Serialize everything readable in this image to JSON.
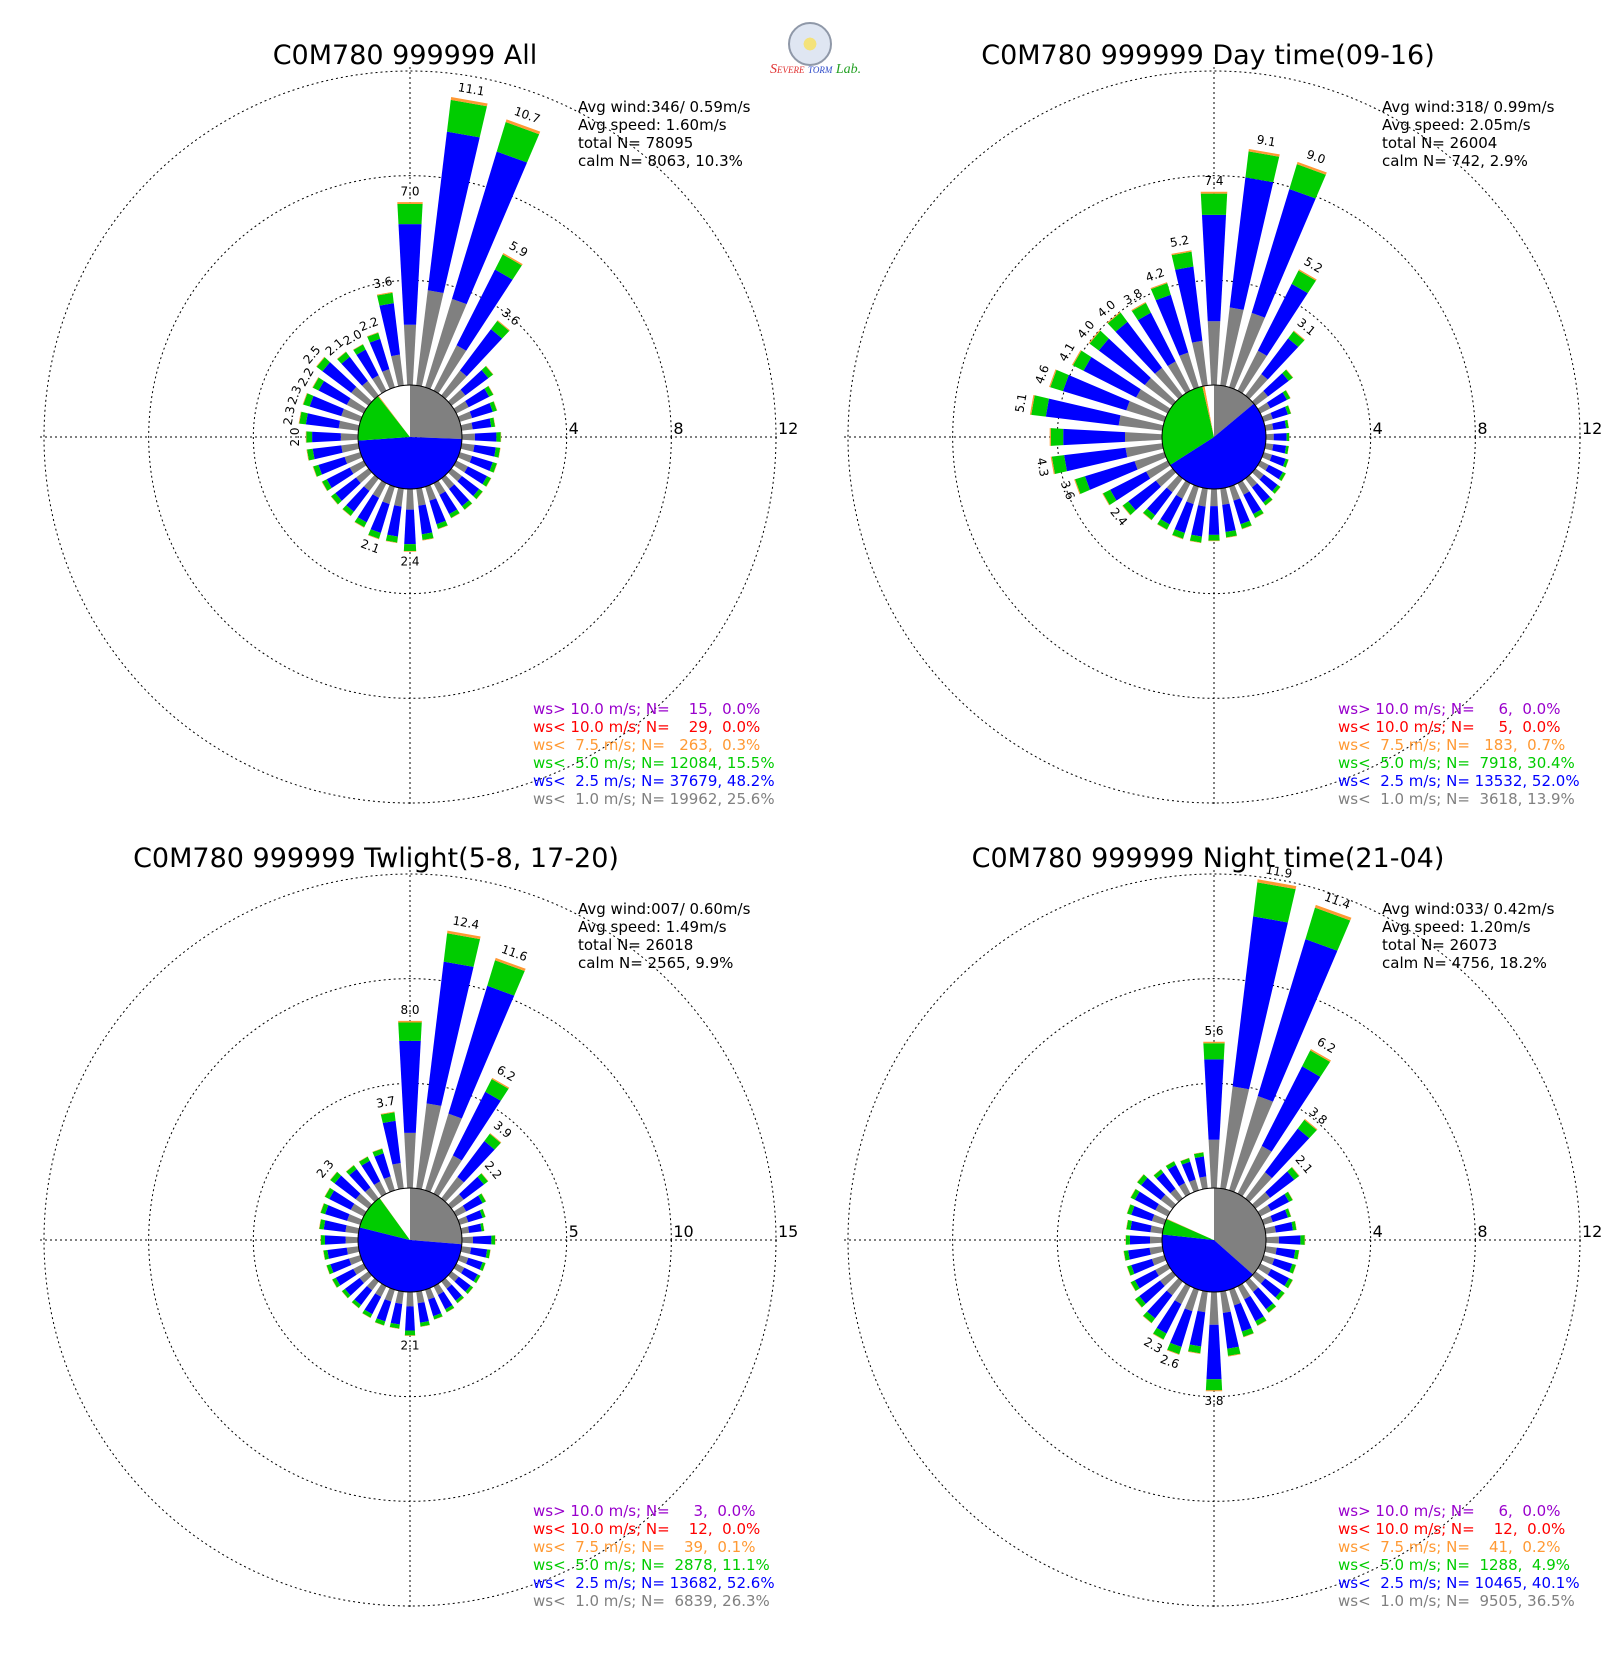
{
  "colors": {
    "ws_gt_10": "#9900cc",
    "ws_lt_10": "#ff0000",
    "ws_lt_7_5": "#ff9933",
    "ws_lt_5": "#00cc00",
    "ws_lt_2_5": "#0000ff",
    "ws_lt_1": "#808080",
    "calm": "#ffffff"
  },
  "logo": {
    "alt": "Severe Storm Lab.",
    "line1": "S",
    "line2": "EVERE",
    "line3": "TORM",
    "line4": "Lab."
  },
  "chart_data": [
    {
      "type": "wind-rose",
      "title": "C0M780 999999 All",
      "stats": {
        "avg_wind": "Avg wind:346/ 0.59m/s",
        "avg_speed": "Avg speed: 1.60m/s",
        "total_n": "total N=      78095",
        "calm_n": "calm N=   8063,  10.3%"
      },
      "rings": [
        4,
        8,
        12
      ],
      "ring_labels": [
        "4",
        "8",
        "12"
      ],
      "rmax": 12,
      "legend": [
        {
          "text": "ws> 10.0 m/s; N=    15,  0.0%",
          "color": "#9900cc"
        },
        {
          "text": "ws< 10.0 m/s; N=    29,  0.0%",
          "color": "#ff0000"
        },
        {
          "text": "ws<  7.5 m/s; N=   263,  0.3%",
          "color": "#ff9933"
        },
        {
          "text": "ws<  5.0 m/s; N= 12084, 15.5%",
          "color": "#00cc00"
        },
        {
          "text": "ws<  2.5 m/s; N= 37679, 48.2%",
          "color": "#0000ff"
        },
        {
          "text": "ws<  1.0 m/s; N= 19962, 25.6%",
          "color": "#808080"
        }
      ],
      "calm_pie": [
        {
          "category": "ws<1.0 m/s",
          "percent": 25.6
        },
        {
          "category": "ws<2.5 m/s",
          "percent": 48.2
        },
        {
          "category": "ws<5.0 m/s",
          "percent": 15.5
        },
        {
          "category": "ws<7.5 m/s",
          "percent": 0.3
        },
        {
          "category": "calm",
          "percent": 10.3
        }
      ],
      "bars": [
        {
          "dir": 0,
          "total": 7.0,
          "label": "7.0"
        },
        {
          "dir": 10,
          "total": 11.1,
          "label": "11.1"
        },
        {
          "dir": 20,
          "total": 10.7,
          "label": "10.7"
        },
        {
          "dir": 30,
          "total": 5.9,
          "label": "5.9"
        },
        {
          "dir": 40,
          "total": 3.6,
          "label": "3.6"
        },
        {
          "dir": 50,
          "total": 2.0
        },
        {
          "dir": 60,
          "total": 1.6
        },
        {
          "dir": 70,
          "total": 1.5
        },
        {
          "dir": 80,
          "total": 1.3
        },
        {
          "dir": 90,
          "total": 1.5
        },
        {
          "dir": 100,
          "total": 1.5
        },
        {
          "dir": 110,
          "total": 1.5
        },
        {
          "dir": 120,
          "total": 1.5
        },
        {
          "dir": 130,
          "total": 1.5
        },
        {
          "dir": 140,
          "total": 1.5
        },
        {
          "dir": 150,
          "total": 1.5
        },
        {
          "dir": 160,
          "total": 1.7
        },
        {
          "dir": 170,
          "total": 2.0
        },
        {
          "dir": 180,
          "total": 2.4,
          "label": "2.4"
        },
        {
          "dir": 190,
          "total": 2.1
        },
        {
          "dir": 200,
          "total": 2.1,
          "label": "2.1"
        },
        {
          "dir": 210,
          "total": 1.9
        },
        {
          "dir": 220,
          "total": 1.8
        },
        {
          "dir": 230,
          "total": 1.8
        },
        {
          "dir": 240,
          "total": 1.8
        },
        {
          "dir": 250,
          "total": 1.9
        },
        {
          "dir": 260,
          "total": 2.0
        },
        {
          "dir": 270,
          "total": 2.0,
          "label": "2.0"
        },
        {
          "dir": 280,
          "total": 2.3,
          "label": "2.3"
        },
        {
          "dir": 290,
          "total": 2.3,
          "label": "2.3"
        },
        {
          "dir": 300,
          "total": 2.2,
          "label": "2.2"
        },
        {
          "dir": 310,
          "total": 2.5,
          "label": "2.5"
        },
        {
          "dir": 320,
          "total": 2.1,
          "label": "2.1"
        },
        {
          "dir": 330,
          "total": 2.0,
          "label": "2.0"
        },
        {
          "dir": 340,
          "total": 2.2,
          "label": "2.2"
        },
        {
          "dir": 350,
          "total": 3.6,
          "label": "3.6"
        }
      ]
    },
    {
      "type": "wind-rose",
      "title": "C0M780 999999 Day time(09-16)",
      "stats": {
        "avg_wind": "Avg wind:318/ 0.99m/s",
        "avg_speed": "Avg speed: 2.05m/s",
        "total_n": "total N=      26004",
        "calm_n": "calm N=    742,   2.9%"
      },
      "rings": [
        4,
        8,
        12
      ],
      "ring_labels": [
        "4",
        "8",
        "12"
      ],
      "rmax": 12,
      "legend": [
        {
          "text": "ws> 10.0 m/s; N=     6,  0.0%",
          "color": "#9900cc"
        },
        {
          "text": "ws< 10.0 m/s; N=     5,  0.0%",
          "color": "#ff0000"
        },
        {
          "text": "ws<  7.5 m/s; N=   183,  0.7%",
          "color": "#ff9933"
        },
        {
          "text": "ws<  5.0 m/s; N=  7918, 30.4%",
          "color": "#00cc00"
        },
        {
          "text": "ws<  2.5 m/s; N= 13532, 52.0%",
          "color": "#0000ff"
        },
        {
          "text": "ws<  1.0 m/s; N=  3618, 13.9%",
          "color": "#808080"
        }
      ],
      "calm_pie": [
        {
          "category": "ws<1.0 m/s",
          "percent": 13.9
        },
        {
          "category": "ws<2.5 m/s",
          "percent": 52.0
        },
        {
          "category": "ws<5.0 m/s",
          "percent": 30.4
        },
        {
          "category": "ws<7.5 m/s",
          "percent": 0.7
        },
        {
          "category": "calm",
          "percent": 2.9
        }
      ],
      "bars": [
        {
          "dir": 0,
          "total": 7.4,
          "label": "7.4"
        },
        {
          "dir": 10,
          "total": 9.1,
          "label": "9.1"
        },
        {
          "dir": 20,
          "total": 9.0,
          "label": "9.0"
        },
        {
          "dir": 30,
          "total": 5.2,
          "label": "5.2"
        },
        {
          "dir": 40,
          "total": 3.1,
          "label": "3.1"
        },
        {
          "dir": 50,
          "total": 1.8
        },
        {
          "dir": 60,
          "total": 1.3
        },
        {
          "dir": 70,
          "total": 1.1
        },
        {
          "dir": 80,
          "total": 0.9
        },
        {
          "dir": 90,
          "total": 0.9
        },
        {
          "dir": 100,
          "total": 0.9
        },
        {
          "dir": 110,
          "total": 1.0
        },
        {
          "dir": 120,
          "total": 1.1
        },
        {
          "dir": 130,
          "total": 1.2
        },
        {
          "dir": 140,
          "total": 1.3
        },
        {
          "dir": 150,
          "total": 1.5
        },
        {
          "dir": 160,
          "total": 1.7
        },
        {
          "dir": 170,
          "total": 1.9
        },
        {
          "dir": 180,
          "total": 2.0
        },
        {
          "dir": 190,
          "total": 2.1
        },
        {
          "dir": 200,
          "total": 2.1
        },
        {
          "dir": 210,
          "total": 2.0
        },
        {
          "dir": 220,
          "total": 2.0
        },
        {
          "dir": 230,
          "total": 2.4,
          "label": "2.4"
        },
        {
          "dir": 240,
          "total": 2.8
        },
        {
          "dir": 250,
          "total": 3.6,
          "label": "3.6"
        },
        {
          "dir": 260,
          "total": 4.3,
          "label": "4.3"
        },
        {
          "dir": 270,
          "total": 4.3
        },
        {
          "dir": 280,
          "total": 5.1,
          "label": "5.1"
        },
        {
          "dir": 290,
          "total": 4.6,
          "label": "4.6"
        },
        {
          "dir": 300,
          "total": 4.1,
          "label": "4.1"
        },
        {
          "dir": 310,
          "total": 4.0,
          "label": "4.0"
        },
        {
          "dir": 320,
          "total": 4.0,
          "label": "4.0"
        },
        {
          "dir": 330,
          "total": 3.8,
          "label": "3.8"
        },
        {
          "dir": 340,
          "total": 4.2,
          "label": "4.2"
        },
        {
          "dir": 350,
          "total": 5.2,
          "label": "5.2"
        }
      ]
    },
    {
      "type": "wind-rose",
      "title": "C0M780 999999 Twlight(5-8, 17-20)",
      "stats": {
        "avg_wind": "Avg wind:007/ 0.60m/s",
        "avg_speed": "Avg speed: 1.49m/s",
        "total_n": "total N=      26018",
        "calm_n": "calm N=   2565,   9.9%"
      },
      "rings": [
        5,
        10,
        15
      ],
      "ring_labels": [
        "5",
        "10",
        "15"
      ],
      "rmax": 15,
      "legend": [
        {
          "text": "ws> 10.0 m/s; N=     3,  0.0%",
          "color": "#9900cc"
        },
        {
          "text": "ws< 10.0 m/s; N=    12,  0.0%",
          "color": "#ff0000"
        },
        {
          "text": "ws<  7.5 m/s; N=    39,  0.1%",
          "color": "#ff9933"
        },
        {
          "text": "ws<  5.0 m/s; N=  2878, 11.1%",
          "color": "#00cc00"
        },
        {
          "text": "ws<  2.5 m/s; N= 13682, 52.6%",
          "color": "#0000ff"
        },
        {
          "text": "ws<  1.0 m/s; N=  6839, 26.3%",
          "color": "#808080"
        }
      ],
      "calm_pie": [
        {
          "category": "ws<1.0 m/s",
          "percent": 26.3
        },
        {
          "category": "ws<2.5 m/s",
          "percent": 52.6
        },
        {
          "category": "ws<5.0 m/s",
          "percent": 11.1
        },
        {
          "category": "ws<7.5 m/s",
          "percent": 0.1
        },
        {
          "category": "calm",
          "percent": 9.9
        }
      ],
      "bars": [
        {
          "dir": 0,
          "total": 8.0,
          "label": "8.0"
        },
        {
          "dir": 10,
          "total": 12.4,
          "label": "12.4"
        },
        {
          "dir": 20,
          "total": 11.6,
          "label": "11.6"
        },
        {
          "dir": 30,
          "total": 6.2,
          "label": "6.2"
        },
        {
          "dir": 40,
          "total": 3.9,
          "label": "3.9"
        },
        {
          "dir": 50,
          "total": 2.2,
          "label": "2.2"
        },
        {
          "dir": 60,
          "total": 1.6
        },
        {
          "dir": 70,
          "total": 1.3
        },
        {
          "dir": 80,
          "total": 1.1
        },
        {
          "dir": 90,
          "total": 1.6
        },
        {
          "dir": 100,
          "total": 1.4
        },
        {
          "dir": 110,
          "total": 1.3
        },
        {
          "dir": 120,
          "total": 1.3
        },
        {
          "dir": 130,
          "total": 1.3
        },
        {
          "dir": 140,
          "total": 1.3
        },
        {
          "dir": 150,
          "total": 1.4
        },
        {
          "dir": 160,
          "total": 1.5
        },
        {
          "dir": 170,
          "total": 1.7
        },
        {
          "dir": 180,
          "total": 2.1,
          "label": "2.1"
        },
        {
          "dir": 190,
          "total": 1.8
        },
        {
          "dir": 200,
          "total": 1.8
        },
        {
          "dir": 210,
          "total": 1.7
        },
        {
          "dir": 220,
          "total": 1.6
        },
        {
          "dir": 230,
          "total": 1.6
        },
        {
          "dir": 240,
          "total": 1.7
        },
        {
          "dir": 250,
          "total": 1.7
        },
        {
          "dir": 260,
          "total": 1.7
        },
        {
          "dir": 270,
          "total": 1.8
        },
        {
          "dir": 280,
          "total": 1.9
        },
        {
          "dir": 290,
          "total": 2.0
        },
        {
          "dir": 300,
          "total": 2.1
        },
        {
          "dir": 310,
          "total": 2.3,
          "label": "2.3"
        },
        {
          "dir": 320,
          "total": 2.0
        },
        {
          "dir": 330,
          "total": 2.0
        },
        {
          "dir": 340,
          "total": 2.1
        },
        {
          "dir": 350,
          "total": 3.7,
          "label": "3.7"
        }
      ]
    },
    {
      "type": "wind-rose",
      "title": "C0M780 999999 Night time(21-04)",
      "stats": {
        "avg_wind": "Avg wind:033/ 0.42m/s",
        "avg_speed": "Avg speed: 1.20m/s",
        "total_n": "total N=      26073",
        "calm_n": "calm N=   4756,  18.2%"
      },
      "rings": [
        4,
        8,
        12
      ],
      "ring_labels": [
        "4",
        "8",
        "12"
      ],
      "rmax": 12,
      "legend": [
        {
          "text": "ws> 10.0 m/s; N=     6,  0.0%",
          "color": "#9900cc"
        },
        {
          "text": "ws< 10.0 m/s; N=    12,  0.0%",
          "color": "#ff0000"
        },
        {
          "text": "ws<  7.5 m/s; N=    41,  0.2%",
          "color": "#ff9933"
        },
        {
          "text": "ws<  5.0 m/s; N=  1288,  4.9%",
          "color": "#00cc00"
        },
        {
          "text": "ws<  2.5 m/s; N= 10465, 40.1%",
          "color": "#0000ff"
        },
        {
          "text": "ws<  1.0 m/s; N=  9505, 36.5%",
          "color": "#808080"
        }
      ],
      "calm_pie": [
        {
          "category": "ws<1.0 m/s",
          "percent": 36.5
        },
        {
          "category": "ws<2.5 m/s",
          "percent": 40.1
        },
        {
          "category": "ws<5.0 m/s",
          "percent": 4.9
        },
        {
          "category": "ws<7.5 m/s",
          "percent": 0.2
        },
        {
          "category": "calm",
          "percent": 18.2
        }
      ],
      "bars": [
        {
          "dir": 0,
          "total": 5.6,
          "label": "5.6"
        },
        {
          "dir": 10,
          "total": 11.9,
          "label": "11.9"
        },
        {
          "dir": 20,
          "total": 11.4,
          "label": "11.4"
        },
        {
          "dir": 30,
          "total": 6.2,
          "label": "6.2"
        },
        {
          "dir": 40,
          "total": 3.8,
          "label": "3.8"
        },
        {
          "dir": 50,
          "total": 2.1,
          "label": "2.1"
        },
        {
          "dir": 60,
          "total": 1.4
        },
        {
          "dir": 70,
          "total": 1.1
        },
        {
          "dir": 80,
          "total": 1.2
        },
        {
          "dir": 90,
          "total": 1.5
        },
        {
          "dir": 100,
          "total": 1.3
        },
        {
          "dir": 110,
          "total": 1.3
        },
        {
          "dir": 120,
          "total": 1.4
        },
        {
          "dir": 130,
          "total": 1.4
        },
        {
          "dir": 140,
          "total": 1.5
        },
        {
          "dir": 150,
          "total": 1.7
        },
        {
          "dir": 160,
          "total": 1.9
        },
        {
          "dir": 170,
          "total": 2.5
        },
        {
          "dir": 180,
          "total": 3.8,
          "label": "3.8"
        },
        {
          "dir": 190,
          "total": 2.4
        },
        {
          "dir": 200,
          "total": 2.6,
          "label": "2.6"
        },
        {
          "dir": 210,
          "total": 2.3,
          "label": "2.3"
        },
        {
          "dir": 220,
          "total": 2.0
        },
        {
          "dir": 230,
          "total": 1.8
        },
        {
          "dir": 240,
          "total": 1.6
        },
        {
          "dir": 250,
          "total": 1.5
        },
        {
          "dir": 260,
          "total": 1.5
        },
        {
          "dir": 270,
          "total": 1.4
        },
        {
          "dir": 280,
          "total": 1.4
        },
        {
          "dir": 290,
          "total": 1.5
        },
        {
          "dir": 300,
          "total": 1.6
        },
        {
          "dir": 310,
          "total": 1.7
        },
        {
          "dir": 320,
          "total": 1.4
        },
        {
          "dir": 330,
          "total": 1.4
        },
        {
          "dir": 340,
          "total": 1.3
        },
        {
          "dir": 350,
          "total": 1.4
        }
      ]
    }
  ]
}
